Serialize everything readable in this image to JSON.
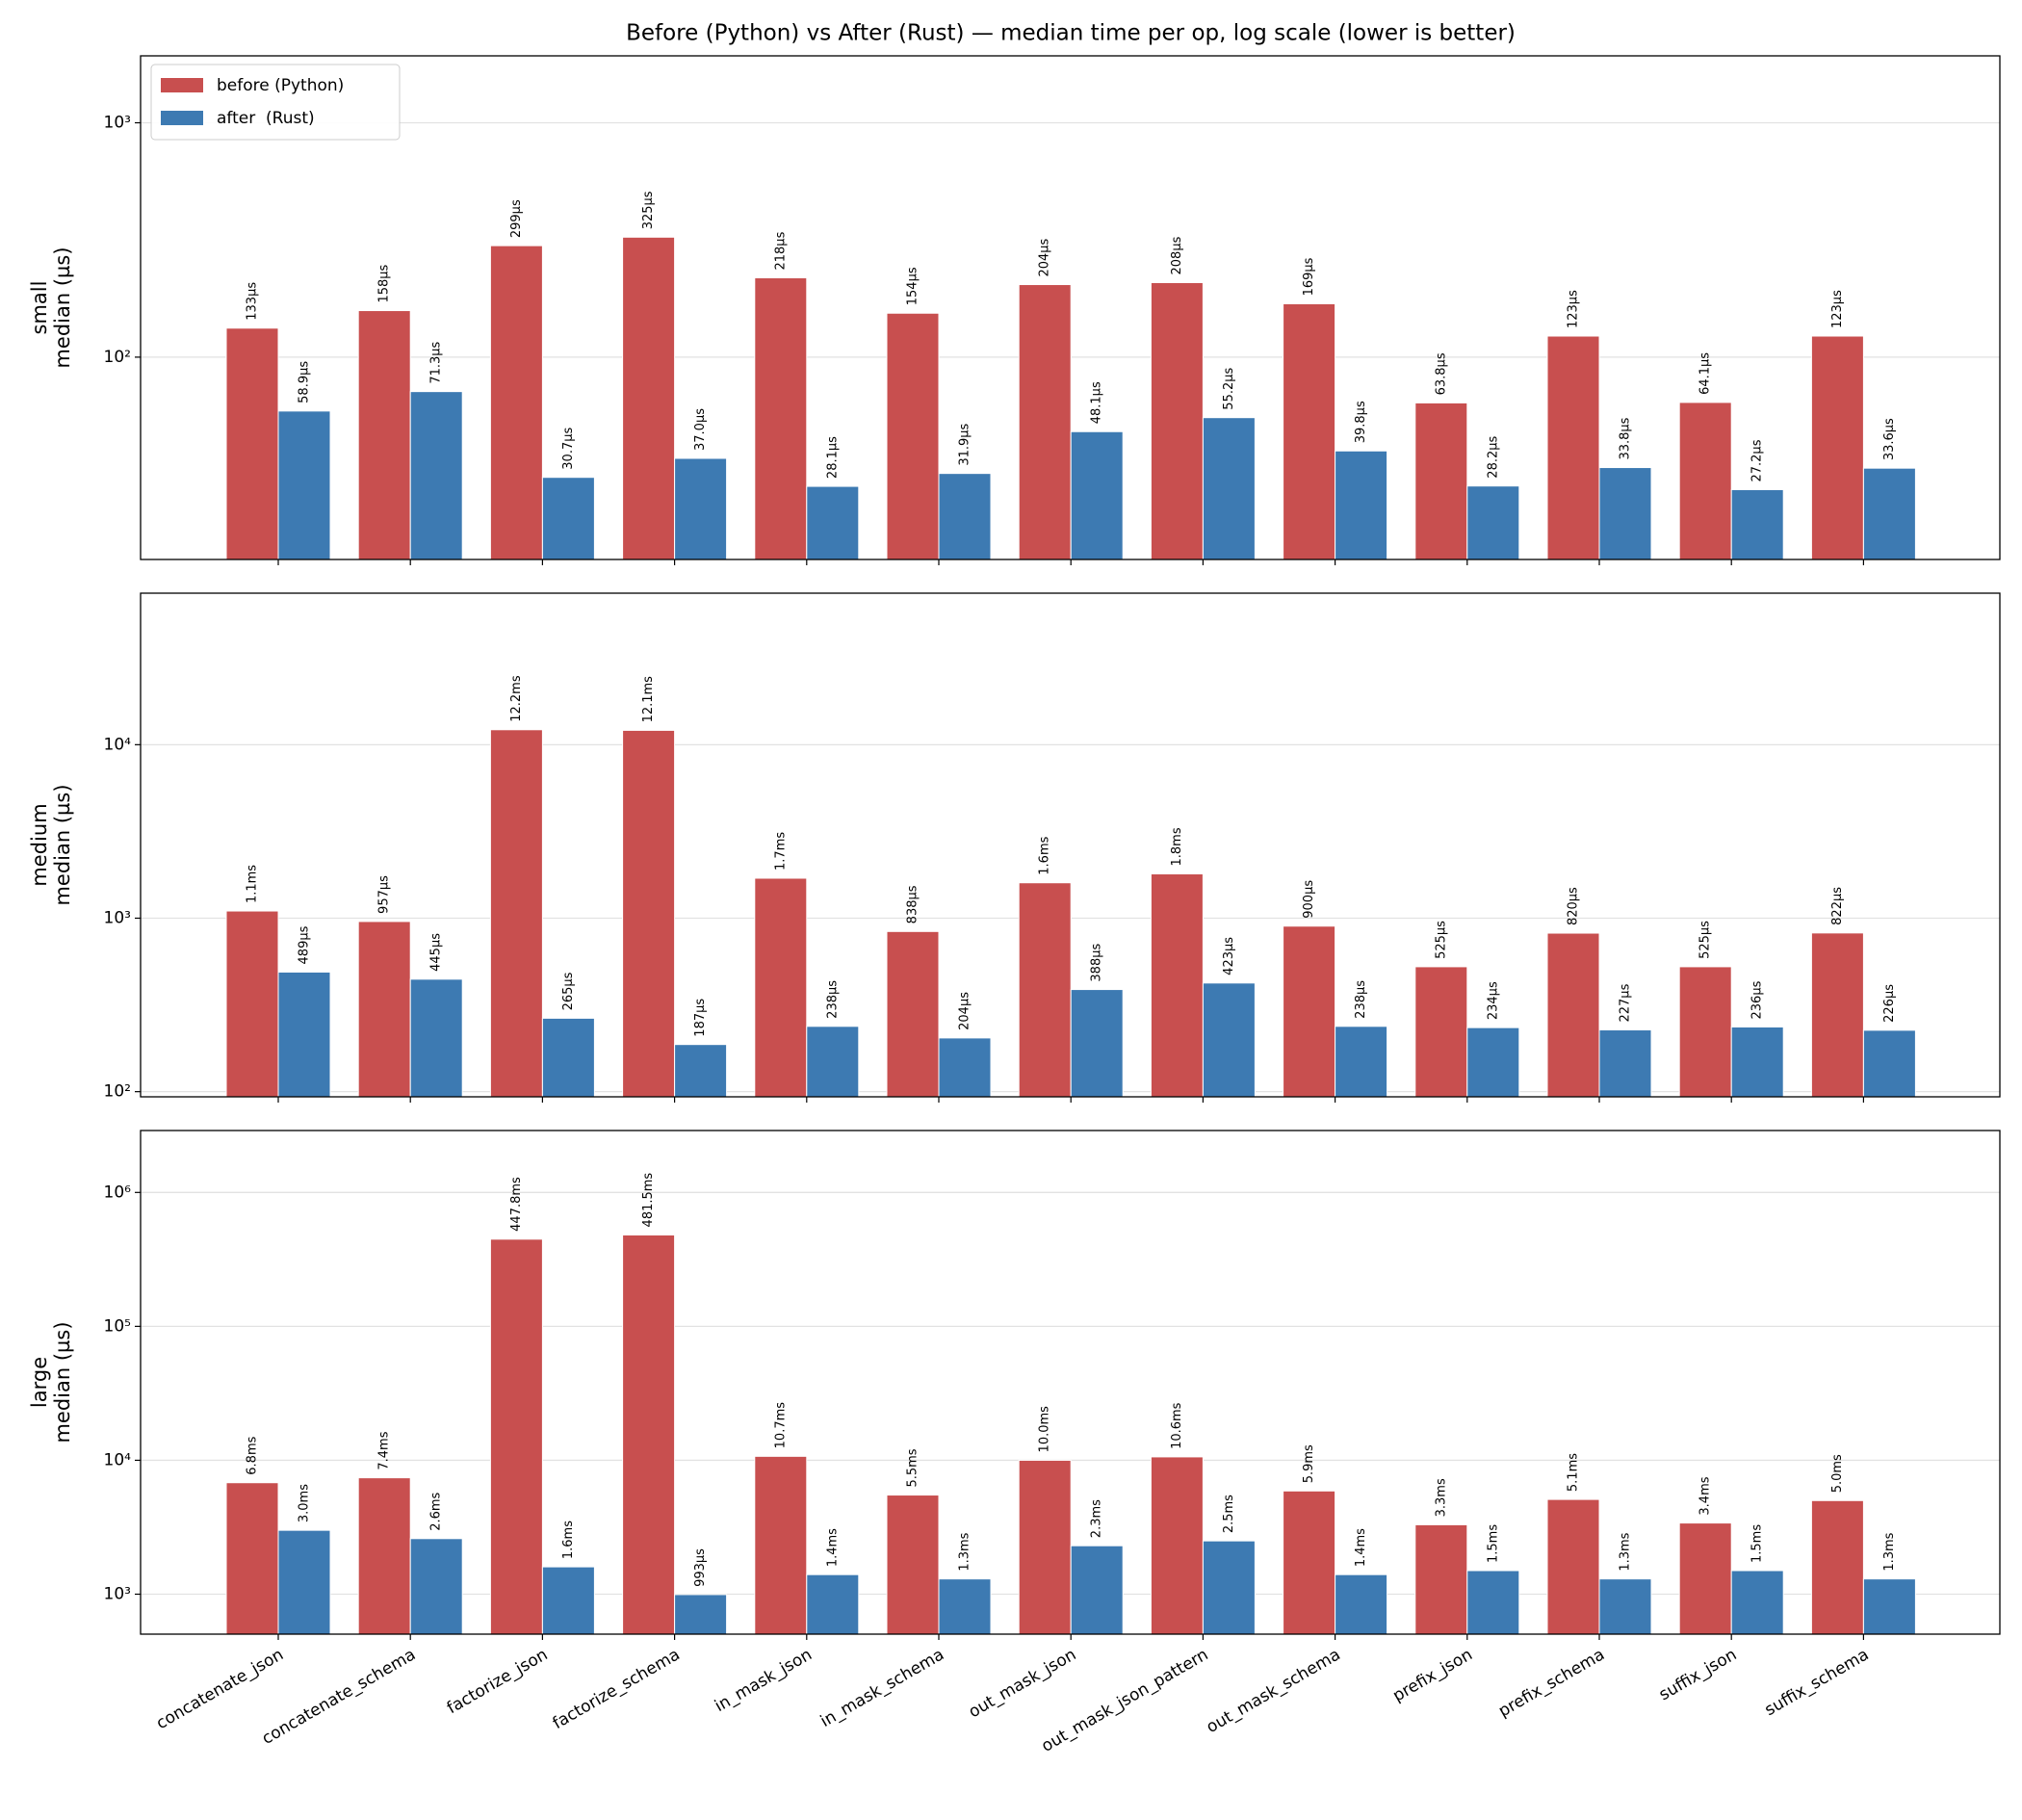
{
  "chart_data": [
    {
      "type": "bar",
      "title": "Before (Python) vs After (Rust) — median time per op, log scale (lower is better)",
      "ylabel": [
        "small",
        "median (µs)"
      ],
      "log": true,
      "grid": true,
      "legend": "upper left",
      "ylim": [
        13.7,
        1930
      ],
      "yticks": [
        {
          "value": 100,
          "label": "10²"
        },
        {
          "value": 1000,
          "label": "10³"
        }
      ],
      "series": [
        {
          "name": "before (Python)",
          "color": "#c84f4f",
          "values": [
            133,
            158,
            299,
            325,
            218,
            154,
            204,
            208,
            169,
            63.8,
            123,
            64.1,
            123
          ],
          "value_labels": [
            "133µs",
            "158µs",
            "299µs",
            "325µs",
            "218µs",
            "154µs",
            "204µs",
            "208µs",
            "169µs",
            "63.8µs",
            "123µs",
            "64.1µs",
            "123µs"
          ]
        },
        {
          "name": "after  (Rust)",
          "color": "#3d7ab2",
          "values": [
            58.9,
            71.3,
            30.7,
            37.0,
            28.1,
            31.9,
            48.1,
            55.2,
            39.8,
            28.2,
            33.8,
            27.2,
            33.6
          ],
          "value_labels": [
            "58.9µs",
            "71.3µs",
            "30.7µs",
            "37.0µs",
            "28.1µs",
            "31.9µs",
            "48.1µs",
            "55.2µs",
            "39.8µs",
            "28.2µs",
            "33.8µs",
            "27.2µs",
            "33.6µs"
          ]
        }
      ]
    },
    {
      "type": "bar",
      "ylabel": [
        "medium",
        "median (µs)"
      ],
      "log": true,
      "grid": true,
      "ylim": [
        93.4,
        74700
      ],
      "yticks": [
        {
          "value": 100,
          "label": "10²"
        },
        {
          "value": 1000,
          "label": "10³"
        },
        {
          "value": 10000,
          "label": "10⁴"
        }
      ],
      "series": [
        {
          "color": "#c84f4f",
          "values": [
            1100,
            957,
            12200,
            12100,
            1700,
            838,
            1600,
            1800,
            900,
            525,
            820,
            525,
            822
          ],
          "value_labels": [
            "1.1ms",
            "957µs",
            "12.2ms",
            "12.1ms",
            "1.7ms",
            "838µs",
            "1.6ms",
            "1.8ms",
            "900µs",
            "525µs",
            "820µs",
            "525µs",
            "822µs"
          ]
        },
        {
          "color": "#3d7ab2",
          "values": [
            489,
            445,
            265,
            187,
            238,
            204,
            388,
            423,
            238,
            234,
            227,
            236,
            226
          ],
          "value_labels": [
            "489µs",
            "445µs",
            "265µs",
            "187µs",
            "238µs",
            "204µs",
            "388µs",
            "423µs",
            "238µs",
            "234µs",
            "227µs",
            "236µs",
            "226µs"
          ]
        }
      ]
    },
    {
      "type": "bar",
      "ylabel": [
        "large",
        "median (µs)"
      ],
      "log": true,
      "grid": true,
      "ylim": [
        503,
        2900000
      ],
      "yticks": [
        {
          "value": 1000,
          "label": "10³"
        },
        {
          "value": 10000,
          "label": "10⁴"
        },
        {
          "value": 100000,
          "label": "10⁵"
        },
        {
          "value": 1000000,
          "label": "10⁶"
        }
      ],
      "categories": [
        "concatenate_json",
        "concatenate_schema",
        "factorize_json",
        "factorize_schema",
        "in_mask_json",
        "in_mask_schema",
        "out_mask_json",
        "out_mask_json_pattern",
        "out_mask_schema",
        "prefix_json",
        "prefix_schema",
        "suffix_json",
        "suffix_schema"
      ],
      "series": [
        {
          "color": "#c84f4f",
          "values": [
            6800,
            7400,
            447800,
            481500,
            10700,
            5500,
            10000,
            10600,
            5900,
            3300,
            5100,
            3400,
            5000
          ],
          "value_labels": [
            "6.8ms",
            "7.4ms",
            "447.8ms",
            "481.5ms",
            "10.7ms",
            "5.5ms",
            "10.0ms",
            "10.6ms",
            "5.9ms",
            "3.3ms",
            "5.1ms",
            "3.4ms",
            "5.0ms"
          ]
        },
        {
          "color": "#3d7ab2",
          "values": [
            3000,
            2600,
            1600,
            993,
            1400,
            1300,
            2300,
            2500,
            1400,
            1500,
            1300,
            1500,
            1300
          ],
          "value_labels": [
            "3.0ms",
            "2.6ms",
            "1.6ms",
            "993µs",
            "1.4ms",
            "1.3ms",
            "2.3ms",
            "2.5ms",
            "1.4ms",
            "1.5ms",
            "1.3ms",
            "1.5ms",
            "1.3ms"
          ]
        }
      ]
    }
  ]
}
